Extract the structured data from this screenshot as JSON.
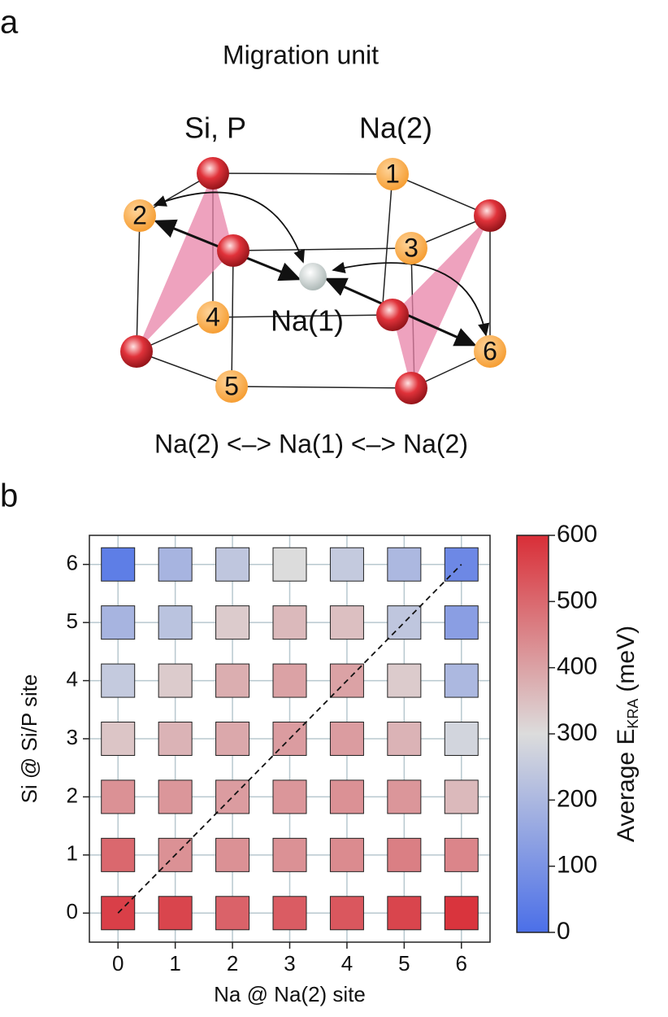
{
  "panel_a": {
    "panel_label": "a",
    "title": "Migration unit",
    "group_labels": [
      "Si, P",
      "Na(2)"
    ],
    "center_label": "Na(1)",
    "site_labels": [
      "1",
      "2",
      "3",
      "4",
      "5",
      "6"
    ],
    "caption": "Na(2) <–> Na(1) <–> Na(2)"
  },
  "chart_data": {
    "type": "heatmap",
    "panel_label": "b",
    "x": [
      0,
      1,
      2,
      3,
      4,
      5,
      6
    ],
    "y": [
      0,
      1,
      2,
      3,
      4,
      5,
      6
    ],
    "values": [
      [
        570,
        560,
        510,
        520,
        530,
        560,
        590
      ],
      [
        500,
        430,
        430,
        430,
        440,
        460,
        450
      ],
      [
        430,
        420,
        410,
        420,
        430,
        420,
        360
      ],
      [
        340,
        370,
        390,
        410,
        410,
        370,
        280
      ],
      [
        250,
        330,
        380,
        400,
        400,
        330,
        200
      ],
      [
        190,
        230,
        330,
        360,
        350,
        240,
        130
      ],
      [
        40,
        190,
        240,
        300,
        250,
        200,
        70
      ]
    ],
    "xlim": [
      -0.5,
      6.5
    ],
    "ylim": [
      -0.5,
      6.5
    ],
    "xticks": [
      0,
      1,
      2,
      3,
      4,
      5,
      6
    ],
    "yticks": [
      0,
      1,
      2,
      3,
      4,
      5,
      6
    ],
    "x_label": "Na @ Na(2) site",
    "y_label": "Si @ Si/P site",
    "zlim": [
      0,
      600
    ],
    "zticks": [
      0,
      100,
      200,
      300,
      400,
      500,
      600
    ],
    "colorbar_label": {
      "text": "Average E",
      "subscript": "KRA",
      "unit": "(meV)"
    },
    "colors": [
      "#4b6fe8",
      "#dcdcdc",
      "#d92e37"
    ],
    "grid": true,
    "diagonal": true
  }
}
